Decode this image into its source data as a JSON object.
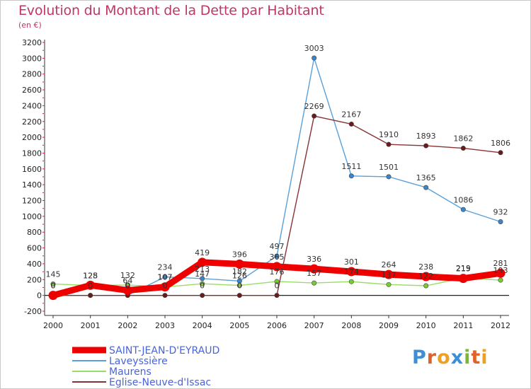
{
  "title": "Evolution du Montant de la Dette par Habitant",
  "subtitle": "(en €)",
  "logo": {
    "letters": [
      "P",
      "r",
      "o",
      "x",
      "i",
      "t",
      "i"
    ],
    "colors": [
      "#3c8fd6",
      "#e0622a",
      "#f0a020",
      "#3c8fd6",
      "#7ab830",
      "#e0622a",
      "#f0a020"
    ]
  },
  "chart_data": {
    "type": "line",
    "x": [
      2000,
      2001,
      2002,
      2003,
      2004,
      2005,
      2006,
      2007,
      2008,
      2009,
      2010,
      2011,
      2012
    ],
    "ylim": [
      -200,
      3200
    ],
    "yticks": [
      -200,
      0,
      200,
      400,
      600,
      800,
      1000,
      1200,
      1400,
      1600,
      1800,
      2000,
      2200,
      2400,
      2600,
      2800,
      3000,
      3200
    ],
    "grid": false,
    "legend": "bottom-left",
    "series": [
      {
        "name": "SAINT-JEAN-D'EYRAUD",
        "color": "#ee0000",
        "markerColor": "#ee0000",
        "values": [
          0,
          128,
          64,
          107,
          419,
          396,
          365,
          336,
          301,
          264,
          238,
          215,
          281
        ],
        "labels": [
          "0",
          "128",
          "64",
          "107",
          "419",
          "396",
          "365",
          "336",
          "301",
          "264",
          "238",
          "215",
          "281"
        ]
      },
      {
        "name": "Laveyssière",
        "color": "#5aa0d8",
        "markerColor": "#3a85cc",
        "values": [
          0,
          0,
          0,
          234,
          213,
          182,
          497,
          3003,
          1511,
          1501,
          1365,
          1086,
          932
        ],
        "labels": [
          "0",
          "0",
          "0",
          "234",
          "213",
          "182",
          "497",
          "3003",
          "1511",
          "1501",
          "1365",
          "1086",
          "932"
        ]
      },
      {
        "name": "Maurens",
        "color": "#99dd66",
        "markerColor": "#77cc33",
        "values": [
          145,
          125,
          132,
          107,
          147,
          126,
          176,
          157,
          174,
          137,
          122,
          219,
          193
        ],
        "labels": [
          "145",
          "125",
          "132",
          "107",
          "147",
          "126",
          "176",
          "157",
          "174",
          "137",
          "122",
          "219",
          "193"
        ]
      },
      {
        "name": "Eglise-Neuve-d'Issac",
        "color": "#883333",
        "markerColor": "#6a1a1a",
        "values": [
          0,
          0,
          0,
          0,
          0,
          0,
          0,
          2269,
          2167,
          1910,
          1893,
          1862,
          1806
        ],
        "labels": [
          "0",
          "0",
          "0",
          "0",
          "0",
          "0",
          "0",
          "2269",
          "2167",
          "1910",
          "1893",
          "1862",
          "1806"
        ]
      }
    ]
  }
}
